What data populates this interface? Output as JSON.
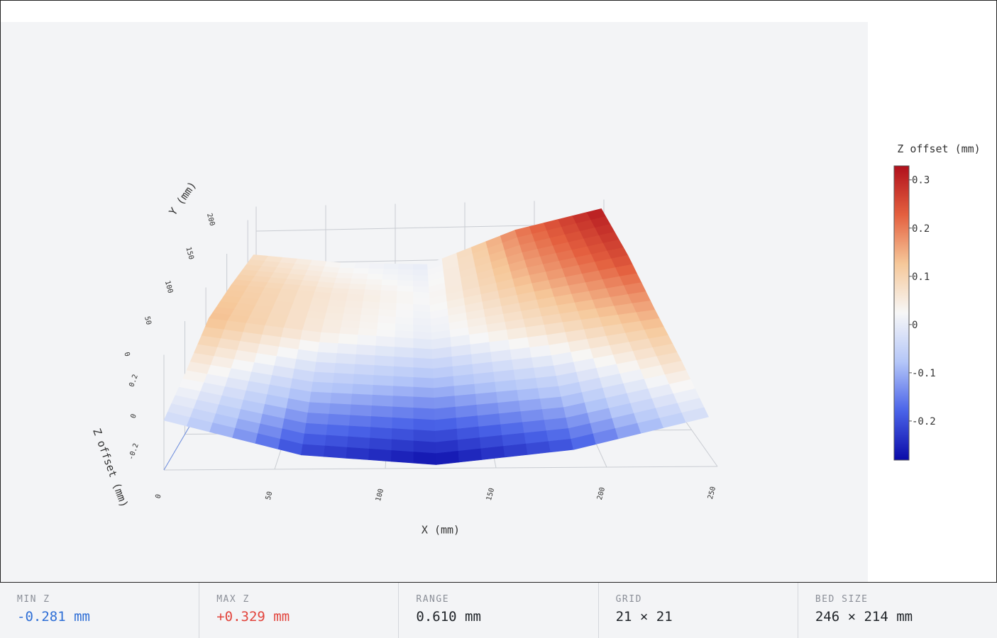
{
  "chart_data": {
    "type": "surface",
    "x_label": "X (mm)",
    "y_label": "Y (mm)",
    "z_label": "Z offset (mm)",
    "x": [
      0,
      62,
      123,
      185,
      246
    ],
    "y": [
      0,
      54,
      107,
      161,
      214
    ],
    "z": [
      [
        -0.02,
        -0.22,
        -0.28,
        -0.2,
        -0.02
      ],
      [
        0.05,
        -0.08,
        -0.12,
        -0.06,
        0.08
      ],
      [
        0.14,
        0.05,
        0.0,
        0.08,
        0.16
      ],
      [
        0.12,
        0.06,
        0.02,
        0.15,
        0.26
      ],
      [
        0.08,
        0.02,
        0.0,
        0.2,
        0.32
      ]
    ],
    "xlim": [
      0,
      250
    ],
    "xticks": [
      0,
      50,
      100,
      150,
      200,
      250
    ],
    "ylim": [
      0,
      220
    ],
    "yticks": [
      0,
      50,
      100,
      150,
      200
    ],
    "zlim": [
      -0.3,
      0.35
    ],
    "zticks": [
      -0.2,
      0,
      0.2
    ],
    "colorscale": [
      "#0a0aa8",
      "#4a63e8",
      "#b4c6f8",
      "#f7f7f7",
      "#f6c89a",
      "#e4603f",
      "#b0101c"
    ],
    "colorbar": {
      "title": "Z offset (mm)",
      "lim": [
        -0.281,
        0.329
      ],
      "ticks": [
        -0.2,
        -0.1,
        0,
        0.1,
        0.2,
        0.3
      ]
    }
  },
  "stats": [
    {
      "label": "MIN Z",
      "value": "-0.281 mm"
    },
    {
      "label": "MAX Z",
      "value": "+0.329 mm"
    },
    {
      "label": "RANGE",
      "value": "0.610 mm"
    },
    {
      "label": "GRID",
      "value": "21 × 21"
    },
    {
      "label": "BED SIZE",
      "value": "246 × 214 mm"
    }
  ]
}
